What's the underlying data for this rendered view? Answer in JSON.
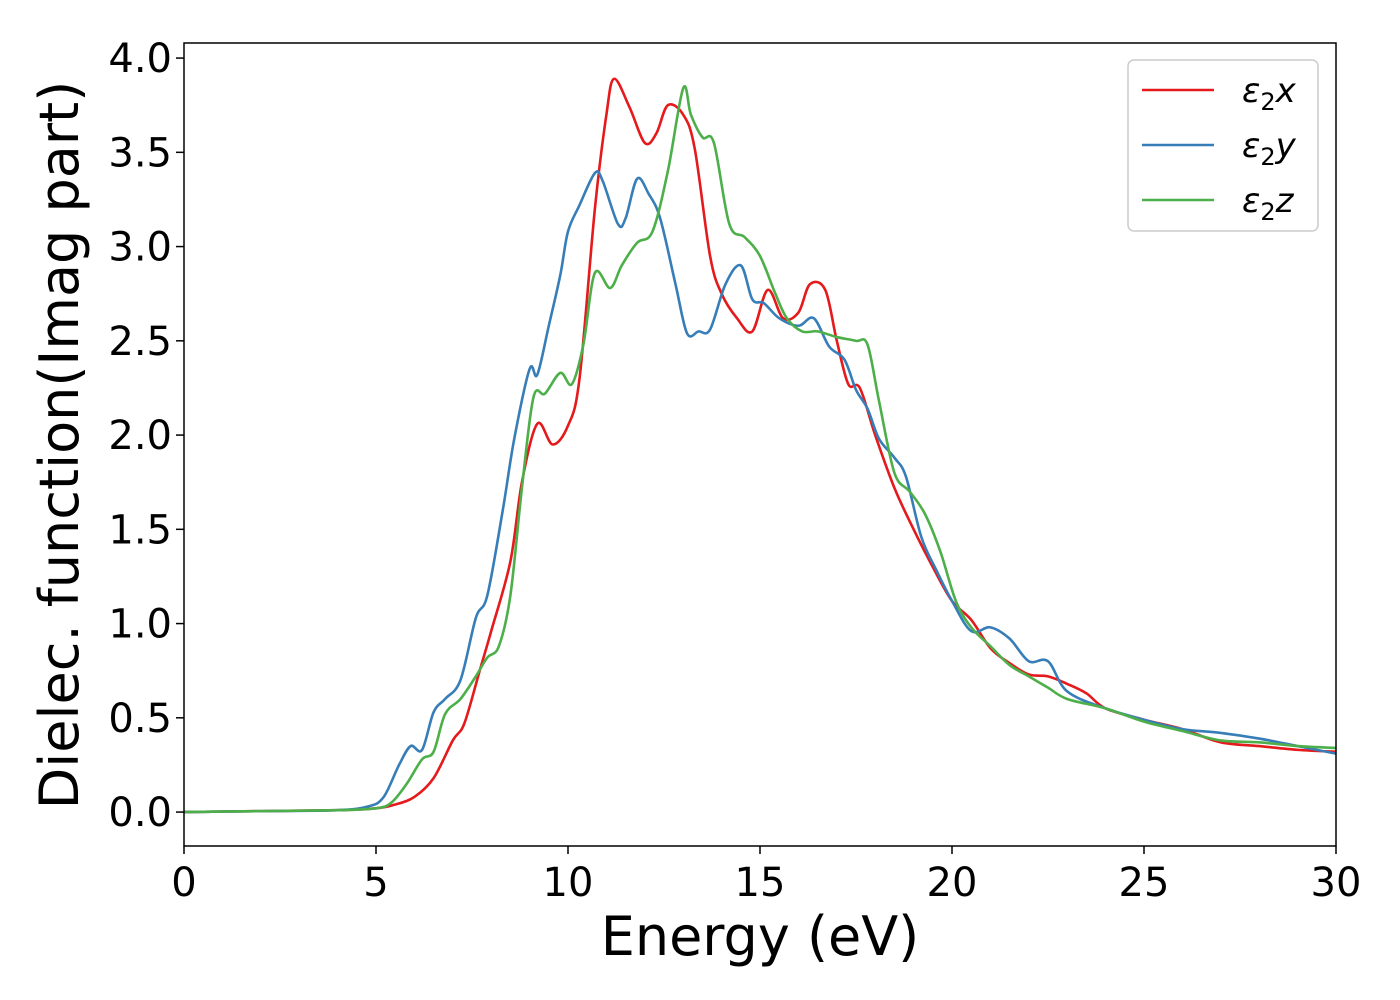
{
  "chart_data": {
    "type": "line",
    "xlabel": "Energy (eV)",
    "ylabel": "Dielec. function(Imag part)",
    "xlim": [
      0,
      30
    ],
    "ylim": [
      -0.18,
      4.08
    ],
    "xticks": [
      0,
      5,
      10,
      15,
      20,
      25,
      30
    ],
    "xtick_labels": [
      "0",
      "5",
      "10",
      "15",
      "20",
      "25",
      "30"
    ],
    "yticks": [
      0.0,
      0.5,
      1.0,
      1.5,
      2.0,
      2.5,
      3.0,
      3.5,
      4.0
    ],
    "ytick_labels": [
      "0.0",
      "0.5",
      "1.0",
      "1.5",
      "2.0",
      "2.5",
      "3.0",
      "3.5",
      "4.0"
    ],
    "grid": false,
    "legend": {
      "position": "top-right"
    },
    "series": [
      {
        "name": "ε₂x",
        "legend_base": "ε",
        "legend_sub": "2",
        "legend_suffix": "x",
        "color": "#e41a1c",
        "x": [
          0,
          2,
          4,
          5,
          5.5,
          6,
          6.5,
          7,
          7.3,
          7.7,
          8,
          8.5,
          8.8,
          9.2,
          9.6,
          10,
          10.3,
          10.7,
          11,
          11.2,
          11.6,
          12,
          12.3,
          12.6,
          13,
          13.3,
          13.7,
          14,
          14.4,
          14.8,
          15.2,
          15.6,
          16,
          16.3,
          16.7,
          17,
          17.3,
          17.6,
          18,
          18.5,
          19,
          19.5,
          20,
          20.5,
          21,
          21.5,
          22,
          22.5,
          23,
          23.5,
          24,
          25,
          26,
          27,
          28,
          29,
          30
        ],
        "y": [
          0.0,
          0.005,
          0.01,
          0.02,
          0.04,
          0.08,
          0.18,
          0.38,
          0.47,
          0.75,
          0.96,
          1.33,
          1.75,
          2.06,
          1.95,
          2.05,
          2.3,
          3.2,
          3.7,
          3.89,
          3.74,
          3.55,
          3.6,
          3.75,
          3.7,
          3.52,
          2.95,
          2.75,
          2.62,
          2.55,
          2.77,
          2.62,
          2.65,
          2.8,
          2.77,
          2.5,
          2.27,
          2.25,
          2.0,
          1.72,
          1.5,
          1.3,
          1.12,
          1.02,
          0.87,
          0.79,
          0.73,
          0.72,
          0.68,
          0.63,
          0.55,
          0.49,
          0.44,
          0.37,
          0.35,
          0.33,
          0.32
        ]
      },
      {
        "name": "ε₂y",
        "legend_base": "ε",
        "legend_sub": "2",
        "legend_suffix": "y",
        "color": "#377eb8",
        "x": [
          0,
          2,
          4,
          4.8,
          5.2,
          5.6,
          5.9,
          6.2,
          6.5,
          6.8,
          7.2,
          7.6,
          7.9,
          8.3,
          8.6,
          9.0,
          9.2,
          9.5,
          9.8,
          10.0,
          10.3,
          10.7,
          10.9,
          11.3,
          11.5,
          11.8,
          12.1,
          12.4,
          12.8,
          13.1,
          13.4,
          13.7,
          14.1,
          14.5,
          14.8,
          15.1,
          15.5,
          16.0,
          16.4,
          16.8,
          17.2,
          17.5,
          17.8,
          18.1,
          18.5,
          18.8,
          19.2,
          19.6,
          20.0,
          20.5,
          21.0,
          21.5,
          22.0,
          22.5,
          23.0,
          24.0,
          25.0,
          26.0,
          27.0,
          28.0,
          29.0,
          30
        ],
        "y": [
          0.0,
          0.005,
          0.01,
          0.03,
          0.08,
          0.25,
          0.35,
          0.33,
          0.53,
          0.6,
          0.7,
          1.03,
          1.15,
          1.6,
          1.98,
          2.35,
          2.32,
          2.58,
          2.85,
          3.08,
          3.22,
          3.39,
          3.35,
          3.12,
          3.15,
          3.36,
          3.28,
          3.15,
          2.8,
          2.54,
          2.55,
          2.56,
          2.8,
          2.9,
          2.72,
          2.7,
          2.62,
          2.58,
          2.62,
          2.47,
          2.4,
          2.24,
          2.14,
          1.98,
          1.88,
          1.78,
          1.46,
          1.28,
          1.12,
          0.96,
          0.98,
          0.92,
          0.8,
          0.8,
          0.64,
          0.55,
          0.49,
          0.44,
          0.42,
          0.39,
          0.35,
          0.31
        ]
      },
      {
        "name": "ε₂z",
        "legend_base": "ε",
        "legend_sub": "2",
        "legend_suffix": "z",
        "color": "#4daf4a",
        "x": [
          0,
          2,
          4,
          5,
          5.4,
          5.8,
          6.2,
          6.5,
          6.8,
          7.2,
          7.6,
          7.9,
          8.2,
          8.5,
          8.8,
          9.1,
          9.4,
          9.8,
          10.1,
          10.4,
          10.7,
          11.1,
          11.4,
          11.8,
          12.2,
          12.6,
          13.0,
          13.2,
          13.5,
          13.8,
          14.2,
          14.6,
          15.0,
          15.4,
          15.7,
          16.1,
          16.5,
          17.0,
          17.5,
          17.8,
          18.1,
          18.5,
          18.9,
          19.3,
          19.7,
          20.1,
          20.5,
          21.0,
          21.5,
          22.0,
          22.5,
          23.0,
          24.0,
          25.0,
          26.0,
          27.0,
          28.0,
          29.0,
          30
        ],
        "y": [
          0.0,
          0.005,
          0.01,
          0.02,
          0.05,
          0.15,
          0.28,
          0.32,
          0.52,
          0.6,
          0.72,
          0.82,
          0.88,
          1.15,
          1.72,
          2.2,
          2.22,
          2.33,
          2.27,
          2.48,
          2.86,
          2.78,
          2.9,
          3.02,
          3.08,
          3.4,
          3.84,
          3.7,
          3.58,
          3.55,
          3.12,
          3.05,
          2.95,
          2.75,
          2.62,
          2.55,
          2.55,
          2.52,
          2.5,
          2.48,
          2.18,
          1.8,
          1.7,
          1.58,
          1.38,
          1.12,
          0.98,
          0.88,
          0.78,
          0.72,
          0.66,
          0.6,
          0.55,
          0.48,
          0.43,
          0.38,
          0.37,
          0.35,
          0.34
        ]
      }
    ]
  }
}
